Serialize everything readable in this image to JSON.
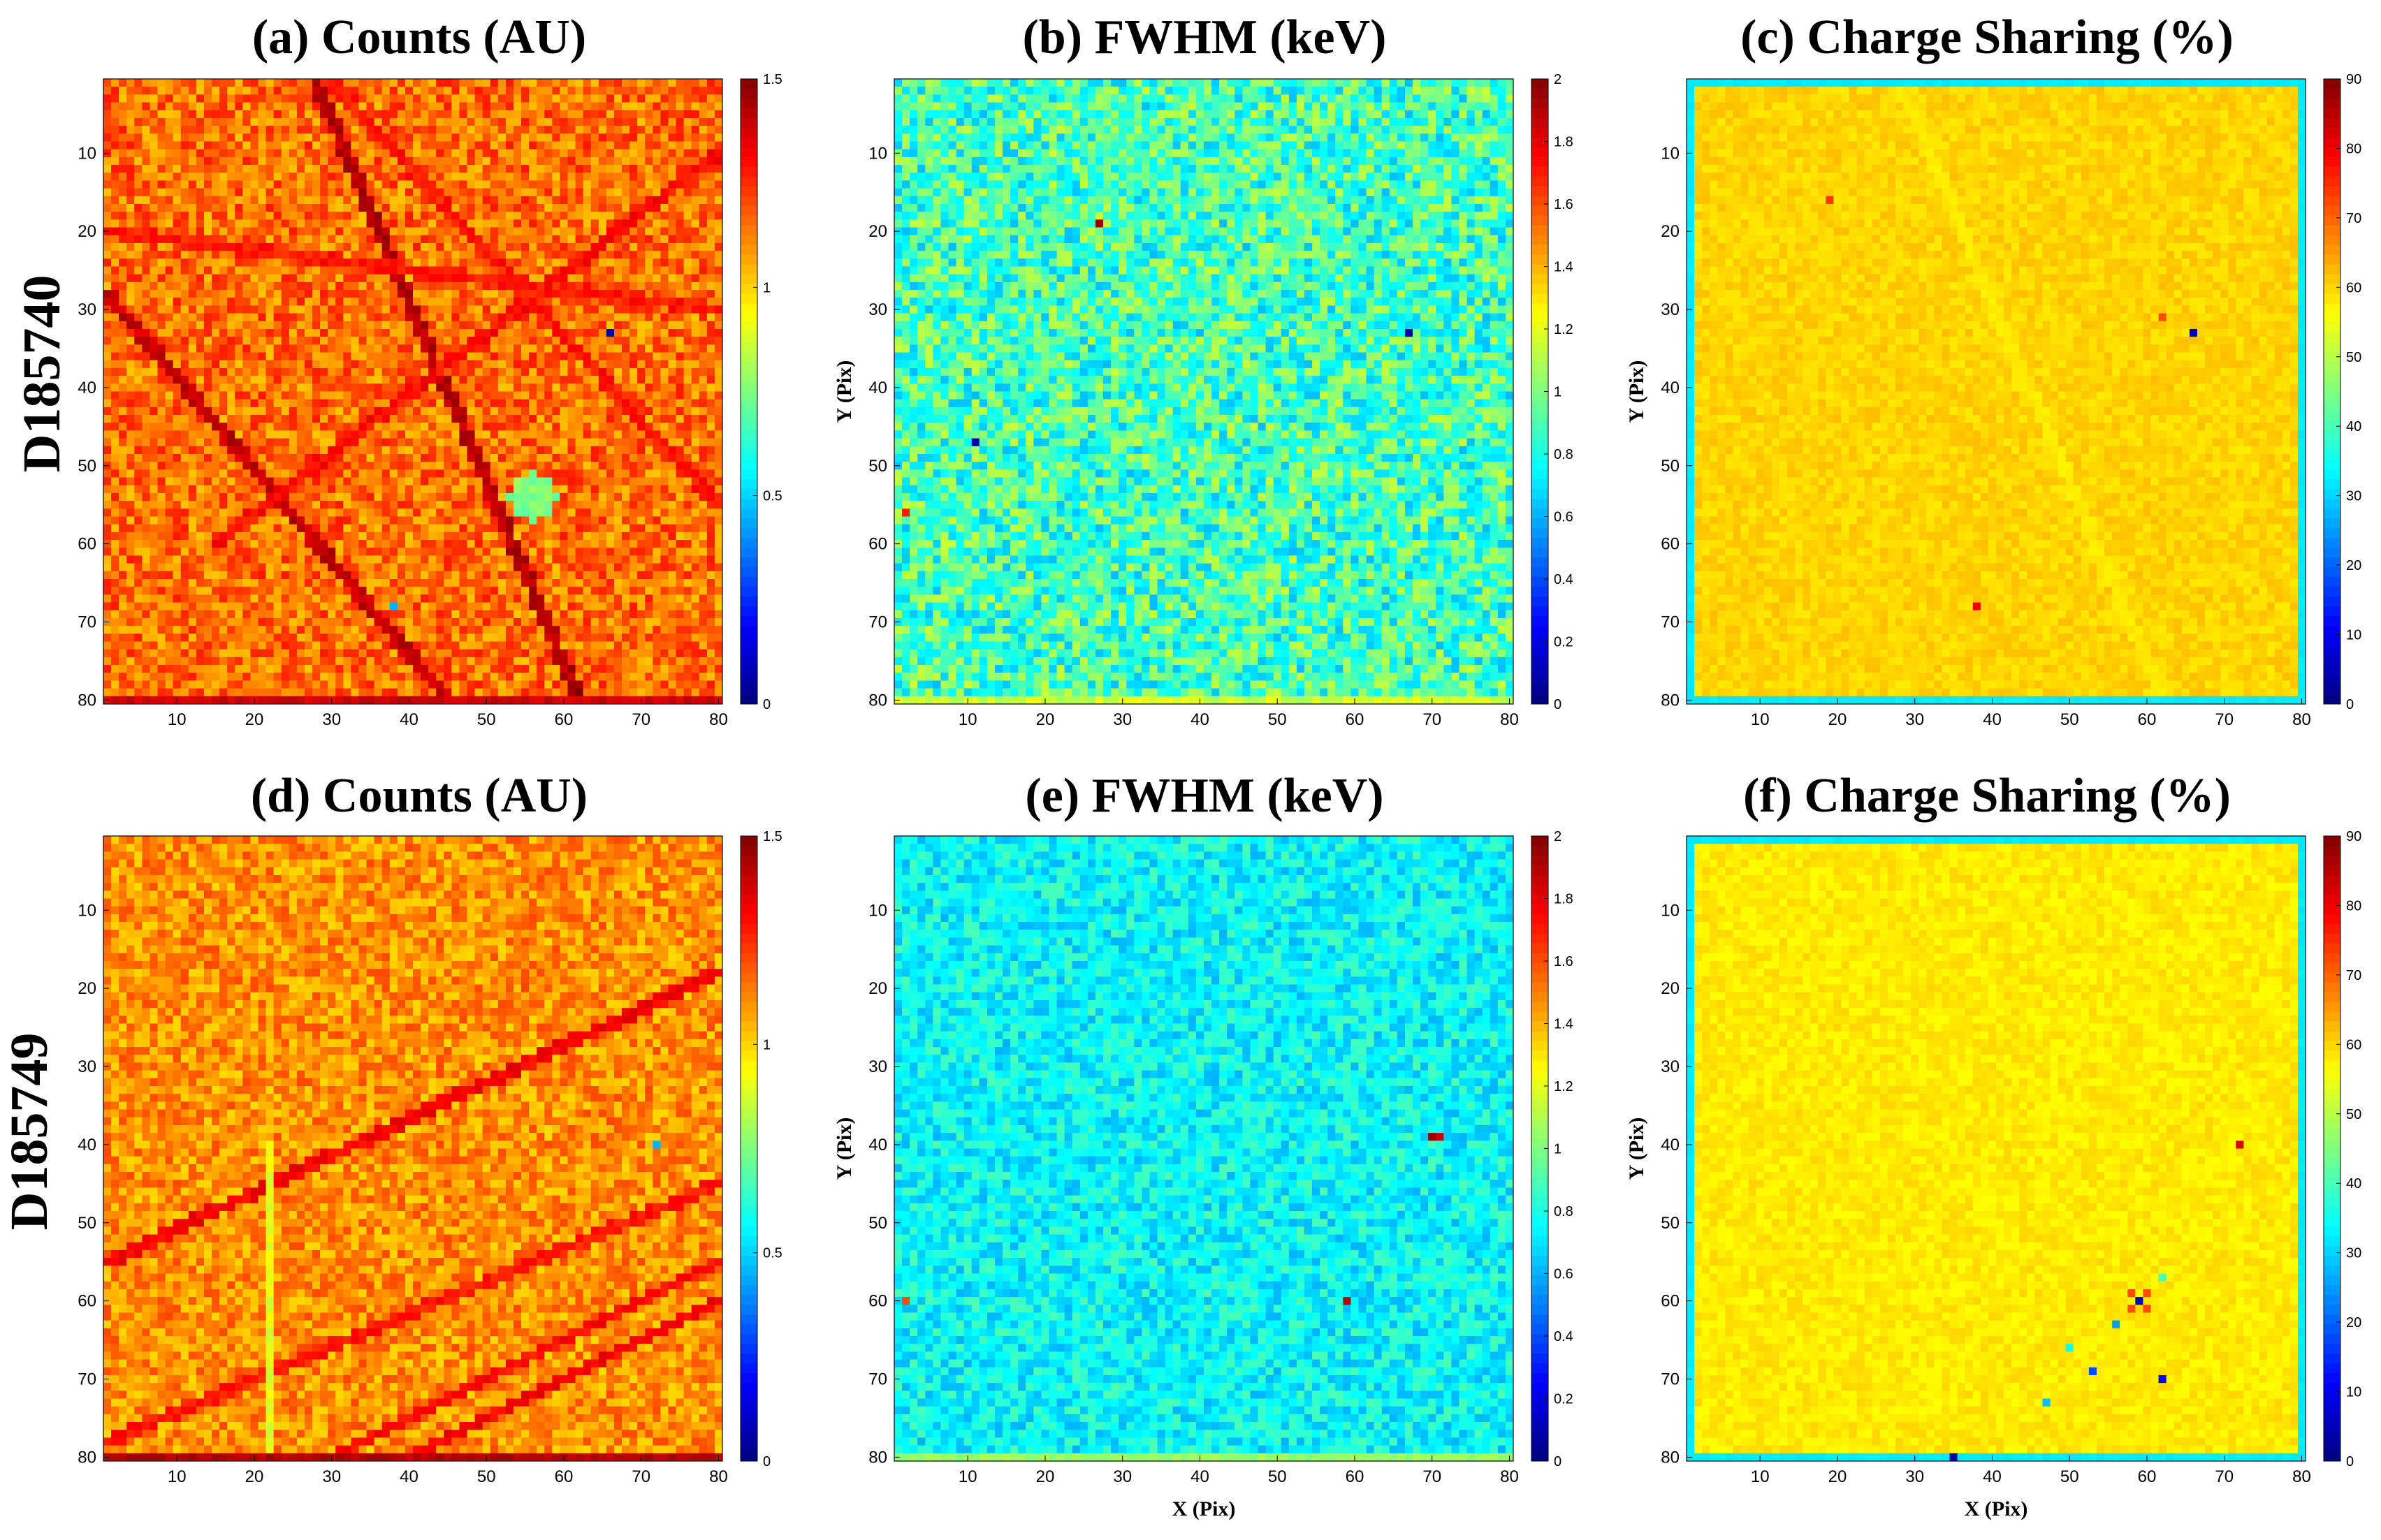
{
  "figure": {
    "rows": [
      {
        "detector": "D185740"
      },
      {
        "detector": "D185749"
      }
    ]
  },
  "chart_data": [
    {
      "type": "heatmap",
      "id": "a",
      "title": "(a) Counts (AU)",
      "xlabel": "",
      "ylabel": "",
      "xlim": [
        1,
        80
      ],
      "ylim": [
        1,
        80
      ],
      "grid_size": 80,
      "xticks": [
        10,
        20,
        30,
        40,
        50,
        60,
        70,
        80
      ],
      "yticks": [
        10,
        20,
        30,
        40,
        50,
        60,
        70,
        80
      ],
      "colorbar": {
        "min": 0,
        "max": 1.5,
        "ticks": [
          "0",
          "0.5",
          "1",
          "1.5"
        ],
        "tick_values": [
          0,
          0.5,
          1,
          1.5
        ],
        "colormap": "jet"
      },
      "base_value": 1.15,
      "noise": 0.13,
      "lines": [
        {
          "x1": 28,
          "y1": 1,
          "x2": 62,
          "y2": 80,
          "value": 1.42
        },
        {
          "x1": 1,
          "y1": 28,
          "x2": 45,
          "y2": 80,
          "value": 1.4
        },
        {
          "x1": 80,
          "y1": 10,
          "x2": 15,
          "y2": 60,
          "value": 1.3
        },
        {
          "x1": 1,
          "y1": 20,
          "x2": 80,
          "y2": 30,
          "value": 1.28
        },
        {
          "x1": 30,
          "y1": 1,
          "x2": 80,
          "y2": 55,
          "value": 1.28
        }
      ],
      "edges": [
        {
          "side": "bottom",
          "value": 1.38
        }
      ],
      "blobs": [
        {
          "x": 56,
          "y": 54,
          "r": 3,
          "value": 0.75
        }
      ],
      "outliers": [
        {
          "x": 66,
          "y": 33,
          "value": 0.05
        },
        {
          "x": 38,
          "y": 68,
          "value": 0.45
        },
        {
          "x": 62,
          "y": 79,
          "value": 1.5
        }
      ]
    },
    {
      "type": "heatmap",
      "id": "b",
      "title": "(b) FWHM (keV)",
      "xlabel": "",
      "ylabel": "Y (Pix)",
      "xlim": [
        1,
        80
      ],
      "ylim": [
        1,
        80
      ],
      "grid_size": 80,
      "xticks": [
        10,
        20,
        30,
        40,
        50,
        60,
        70,
        80
      ],
      "yticks": [
        10,
        20,
        30,
        40,
        50,
        60,
        70,
        80
      ],
      "colorbar": {
        "min": 0,
        "max": 2,
        "ticks": [
          "0",
          "0.2",
          "0.4",
          "0.6",
          "0.8",
          "1",
          "1.2",
          "1.4",
          "1.6",
          "1.8",
          "2"
        ],
        "tick_values": [
          0,
          0.2,
          0.4,
          0.6,
          0.8,
          1,
          1.2,
          1.4,
          1.6,
          1.8,
          2
        ],
        "colormap": "jet"
      },
      "base_value": 0.88,
      "noise": 0.26,
      "lines": [],
      "edges": [
        {
          "side": "bottom",
          "value": 1.15
        }
      ],
      "blobs": [],
      "outliers": [
        {
          "x": 27,
          "y": 19,
          "value": 1.95
        },
        {
          "x": 67,
          "y": 33,
          "value": 0.1
        },
        {
          "x": 11,
          "y": 47,
          "value": 0.1
        },
        {
          "x": 2,
          "y": 56,
          "value": 1.7
        }
      ]
    },
    {
      "type": "heatmap",
      "id": "c",
      "title": "(c) Charge Sharing (%)",
      "xlabel": "",
      "ylabel": "Y (Pix)",
      "xlim": [
        1,
        80
      ],
      "ylim": [
        1,
        80
      ],
      "grid_size": 80,
      "xticks": [
        10,
        20,
        30,
        40,
        50,
        60,
        70,
        80
      ],
      "yticks": [
        10,
        20,
        30,
        40,
        50,
        60,
        70,
        80
      ],
      "colorbar": {
        "min": 0,
        "max": 90,
        "ticks": [
          "0",
          "10",
          "20",
          "30",
          "40",
          "50",
          "60",
          "70",
          "80",
          "90"
        ],
        "tick_values": [
          0,
          10,
          20,
          30,
          40,
          50,
          60,
          70,
          80,
          90
        ],
        "colormap": "jet"
      },
      "base_value": 60,
      "noise": 2,
      "lines": [
        {
          "x1": 28,
          "y1": 1,
          "x2": 62,
          "y2": 80,
          "value": 58
        }
      ],
      "edges": [
        {
          "side": "all",
          "value": 32
        }
      ],
      "blobs": [],
      "outliers": [
        {
          "x": 19,
          "y": 16,
          "value": 74
        },
        {
          "x": 66,
          "y": 33,
          "value": 5
        },
        {
          "x": 38,
          "y": 68,
          "value": 80
        },
        {
          "x": 62,
          "y": 31,
          "value": 72
        }
      ]
    },
    {
      "type": "heatmap",
      "id": "d",
      "title": "(d) Counts (AU)",
      "xlabel": "",
      "ylabel": "",
      "xlim": [
        1,
        80
      ],
      "ylim": [
        1,
        80
      ],
      "grid_size": 80,
      "xticks": [
        10,
        20,
        30,
        40,
        50,
        60,
        70,
        80
      ],
      "yticks": [
        10,
        20,
        30,
        40,
        50,
        60,
        70,
        80
      ],
      "colorbar": {
        "min": 0,
        "max": 1.5,
        "ticks": [
          "0",
          "0.5",
          "1",
          "1.5"
        ],
        "tick_values": [
          0,
          0.5,
          1,
          1.5
        ],
        "colormap": "jet"
      },
      "base_value": 1.1,
      "noise": 0.11,
      "lines": [
        {
          "x1": 1,
          "y1": 55,
          "x2": 80,
          "y2": 18,
          "value": 1.32
        },
        {
          "x1": 1,
          "y1": 78,
          "x2": 80,
          "y2": 45,
          "value": 1.28
        },
        {
          "x1": 30,
          "y1": 80,
          "x2": 80,
          "y2": 55,
          "value": 1.3
        },
        {
          "x1": 40,
          "y1": 80,
          "x2": 80,
          "y2": 60,
          "value": 1.32
        },
        {
          "x1": 22,
          "y1": 40,
          "x2": 22,
          "y2": 80,
          "value": 0.9
        }
      ],
      "edges": [
        {
          "side": "bottom",
          "value": 1.42
        }
      ],
      "blobs": [],
      "outliers": [
        {
          "x": 72,
          "y": 40,
          "value": 0.45
        }
      ]
    },
    {
      "type": "heatmap",
      "id": "e",
      "title": "(e) FWHM (keV)",
      "xlabel": "X (Pix)",
      "ylabel": "Y (Pix)",
      "xlim": [
        1,
        80
      ],
      "ylim": [
        1,
        80
      ],
      "grid_size": 80,
      "xticks": [
        10,
        20,
        30,
        40,
        50,
        60,
        70,
        80
      ],
      "yticks": [
        10,
        20,
        30,
        40,
        50,
        60,
        70,
        80
      ],
      "colorbar": {
        "min": 0,
        "max": 2,
        "ticks": [
          "0",
          "0.2",
          "0.4",
          "0.6",
          "0.8",
          "1",
          "1.2",
          "1.4",
          "1.6",
          "1.8",
          "2"
        ],
        "tick_values": [
          0,
          0.2,
          0.4,
          0.6,
          0.8,
          1,
          1.2,
          1.4,
          1.6,
          1.8,
          2
        ],
        "colormap": "jet"
      },
      "base_value": 0.75,
      "noise": 0.15,
      "lines": [],
      "edges": [
        {
          "side": "bottom",
          "value": 1.05
        }
      ],
      "blobs": [],
      "outliers": [
        {
          "x": 70,
          "y": 39,
          "value": 1.95
        },
        {
          "x": 71,
          "y": 39,
          "value": 1.85
        },
        {
          "x": 59,
          "y": 60,
          "value": 1.9
        },
        {
          "x": 2,
          "y": 60,
          "value": 1.6
        }
      ]
    },
    {
      "type": "heatmap",
      "id": "f",
      "title": "(f) Charge Sharing (%)",
      "xlabel": "X (Pix)",
      "ylabel": "Y (Pix)",
      "xlim": [
        1,
        80
      ],
      "ylim": [
        1,
        80
      ],
      "grid_size": 80,
      "xticks": [
        10,
        20,
        30,
        40,
        50,
        60,
        70,
        80
      ],
      "yticks": [
        10,
        20,
        30,
        40,
        50,
        60,
        70,
        80
      ],
      "colorbar": {
        "min": 0,
        "max": 90,
        "ticks": [
          "0",
          "10",
          "20",
          "30",
          "40",
          "50",
          "60",
          "70",
          "80",
          "90"
        ],
        "tick_values": [
          0,
          10,
          20,
          30,
          40,
          50,
          60,
          70,
          80,
          90
        ],
        "colormap": "jet"
      },
      "base_value": 58,
      "noise": 2,
      "lines": [],
      "edges": [
        {
          "side": "all",
          "value": 32
        }
      ],
      "blobs": [],
      "outliers": [
        {
          "x": 72,
          "y": 40,
          "value": 82
        },
        {
          "x": 59,
          "y": 60,
          "value": 5
        },
        {
          "x": 58,
          "y": 59,
          "value": 72
        },
        {
          "x": 60,
          "y": 59,
          "value": 72
        },
        {
          "x": 58,
          "y": 61,
          "value": 72
        },
        {
          "x": 60,
          "y": 61,
          "value": 72
        },
        {
          "x": 56,
          "y": 63,
          "value": 25
        },
        {
          "x": 53,
          "y": 69,
          "value": 18
        },
        {
          "x": 62,
          "y": 70,
          "value": 10
        },
        {
          "x": 47,
          "y": 73,
          "value": 28
        },
        {
          "x": 50,
          "y": 66,
          "value": 35
        },
        {
          "x": 35,
          "y": 80,
          "value": 5
        },
        {
          "x": 62,
          "y": 57,
          "value": 40
        }
      ]
    }
  ]
}
